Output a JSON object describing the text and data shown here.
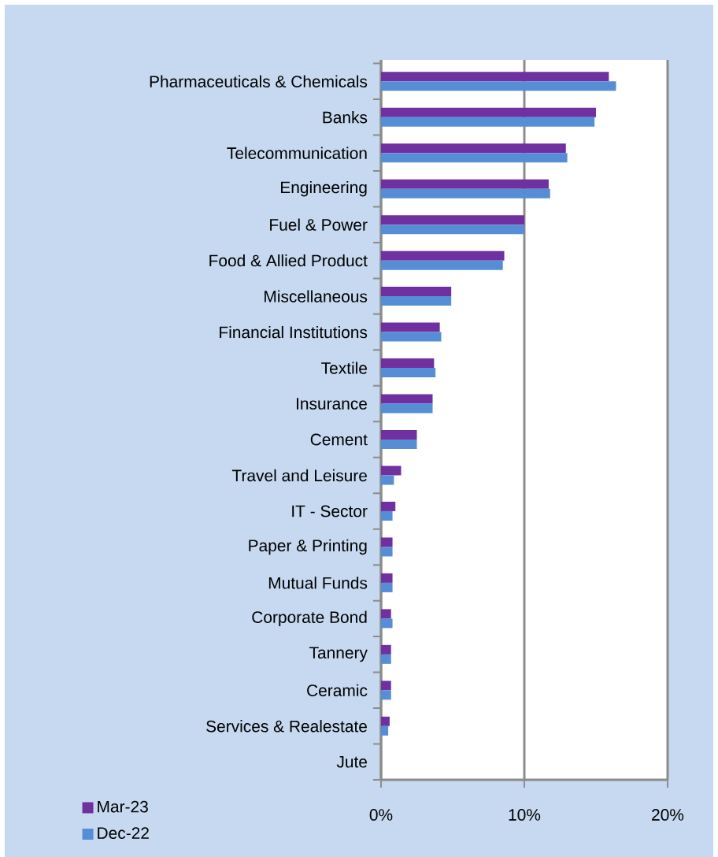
{
  "chart_data": {
    "type": "bar",
    "orientation": "horizontal",
    "categories": [
      "Pharmaceuticals & Chemicals",
      "Banks",
      "Telecommunication",
      "Engineering",
      "Fuel & Power",
      "Food & Allied Product",
      "Miscellaneous",
      "Financial Institutions",
      "Textile",
      "Insurance",
      "Cement",
      "Travel and Leisure",
      "IT - Sector",
      "Paper & Printing",
      "Mutual Funds",
      "Corporate Bond",
      "Tannery",
      "Ceramic",
      "Services & Realestate",
      "Jute"
    ],
    "series": [
      {
        "name": "Mar-23",
        "color": "#7030a0",
        "values": [
          15.9,
          15.0,
          12.9,
          11.7,
          10.0,
          8.6,
          4.9,
          4.1,
          3.7,
          3.6,
          2.5,
          1.4,
          1.0,
          0.8,
          0.8,
          0.7,
          0.7,
          0.7,
          0.6,
          0.0
        ]
      },
      {
        "name": "Dec-22",
        "color": "#558ed5",
        "values": [
          16.4,
          14.9,
          13.0,
          11.8,
          10.0,
          8.5,
          4.9,
          4.2,
          3.8,
          3.6,
          2.5,
          0.9,
          0.8,
          0.8,
          0.8,
          0.8,
          0.7,
          0.7,
          0.5,
          0.0
        ]
      }
    ],
    "xlim": [
      0,
      20
    ],
    "xticks": [
      {
        "value": 0,
        "label": "0%"
      },
      {
        "value": 10,
        "label": "10%"
      },
      {
        "value": 20,
        "label": "20%"
      }
    ],
    "grid": "x",
    "legend": "bottom left"
  }
}
